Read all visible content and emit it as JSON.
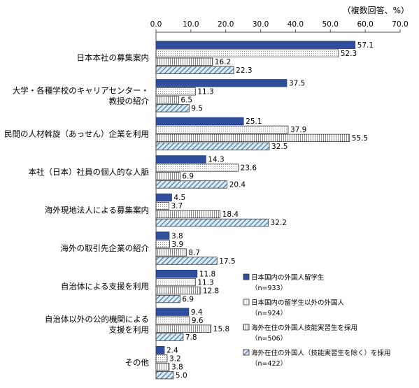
{
  "chart_data": {
    "type": "bar",
    "orientation": "horizontal",
    "unit_note": "（複数回答、%）",
    "xlim": [
      0,
      70
    ],
    "xticks": [
      "0.0",
      "10.0",
      "20.0",
      "30.0",
      "40.0",
      "50.0",
      "60.0",
      "70.0"
    ],
    "grid": false,
    "legend_position": "bottom-right",
    "categories": [
      [
        "日本本社の募集案内"
      ],
      [
        "大学・各種学校のキャリアセンター・",
        "教授の紹介"
      ],
      [
        "民間の人材斡旋（あっせん）企業を利用"
      ],
      [
        "本社（日本）社員の個人的な人脈"
      ],
      [
        "海外現地法人による募集案内"
      ],
      [
        "海外の取引先企業の紹介"
      ],
      [
        "自治体による支援を利用"
      ],
      [
        "自治体以外の公的機関による",
        "支援を利用"
      ],
      [
        "その他"
      ]
    ],
    "series": [
      {
        "name": "日本国内の外国人留学生",
        "n": "（n=933）",
        "color": "#2f4f9e",
        "values": [
          57.1,
          37.5,
          25.1,
          14.3,
          4.5,
          3.8,
          11.8,
          9.4,
          2.4
        ]
      },
      {
        "name": "日本国内の留学生以外の外国人",
        "n": "（n=924）",
        "color": "#ffffff",
        "values": [
          52.3,
          11.3,
          37.9,
          23.6,
          3.7,
          3.9,
          11.3,
          9.6,
          3.2
        ]
      },
      {
        "name": "海外在住の外国人技能実習生を採用",
        "n": "（n=506）",
        "color": "#ffffff",
        "values": [
          16.2,
          6.5,
          55.5,
          6.9,
          18.4,
          8.7,
          12.8,
          15.8,
          3.8
        ]
      },
      {
        "name": "海外在住の外国人（技能実習生を除く）を採用",
        "n": "（n=422）",
        "color": "#dbeaf4",
        "values": [
          22.3,
          9.5,
          32.5,
          20.4,
          32.2,
          17.5,
          6.9,
          7.8,
          5.0
        ]
      }
    ]
  }
}
